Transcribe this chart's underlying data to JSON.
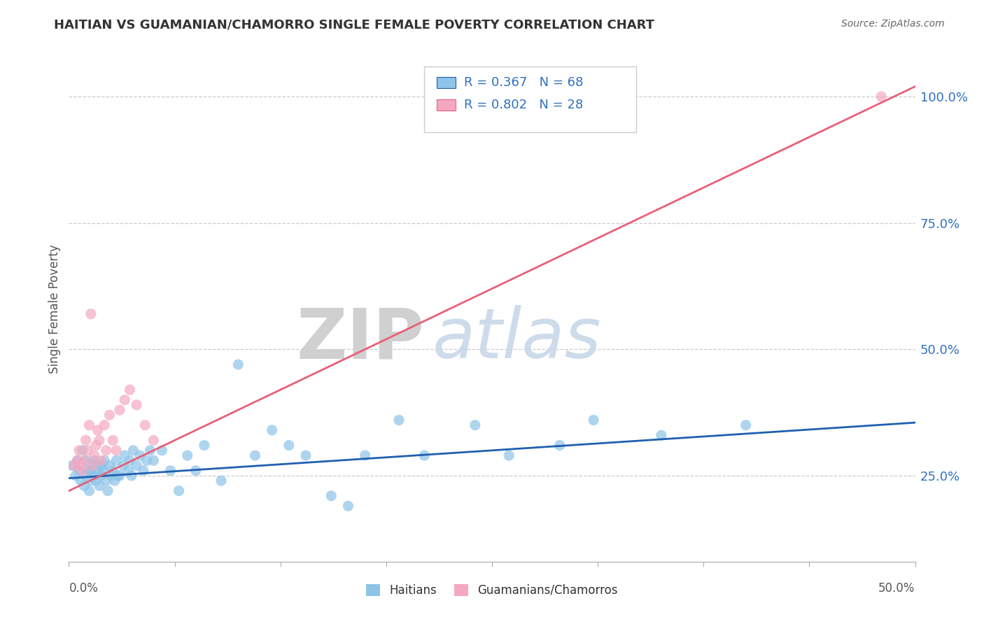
{
  "title": "HAITIAN VS GUAMANIAN/CHAMORRO SINGLE FEMALE POVERTY CORRELATION CHART",
  "source": "Source: ZipAtlas.com",
  "ylabel": "Single Female Poverty",
  "xlim": [
    0.0,
    0.5
  ],
  "ylim": [
    0.08,
    1.08
  ],
  "ytick_labels": [
    "25.0%",
    "50.0%",
    "75.0%",
    "100.0%"
  ],
  "ytick_values": [
    0.25,
    0.5,
    0.75,
    1.0
  ],
  "xtick_labels": [
    "0.0%",
    "50.0%"
  ],
  "xtick_values": [
    0.0,
    0.5
  ],
  "legend_r1": "R = 0.367",
  "legend_n1": "N = 68",
  "legend_r2": "R = 0.802",
  "legend_n2": "N = 28",
  "legend_label1": "Haitians",
  "legend_label2": "Guamanians/Chamorros",
  "color_blue": "#8ec4e8",
  "color_pink": "#f4a8c0",
  "color_blue_line": "#2060b0",
  "color_pink_line": "#e8607a",
  "color_text_blue": "#3070c0",
  "watermark_zip": "ZIP",
  "watermark_atlas": "atlas",
  "blue_scatter_x": [
    0.002,
    0.004,
    0.005,
    0.006,
    0.007,
    0.008,
    0.009,
    0.01,
    0.01,
    0.011,
    0.012,
    0.013,
    0.013,
    0.014,
    0.015,
    0.015,
    0.016,
    0.017,
    0.018,
    0.018,
    0.019,
    0.02,
    0.02,
    0.021,
    0.022,
    0.023,
    0.024,
    0.025,
    0.026,
    0.027,
    0.028,
    0.029,
    0.03,
    0.032,
    0.033,
    0.035,
    0.036,
    0.037,
    0.038,
    0.04,
    0.042,
    0.044,
    0.046,
    0.048,
    0.05,
    0.055,
    0.06,
    0.065,
    0.07,
    0.075,
    0.08,
    0.09,
    0.1,
    0.11,
    0.12,
    0.13,
    0.14,
    0.155,
    0.165,
    0.175,
    0.195,
    0.21,
    0.24,
    0.26,
    0.29,
    0.31,
    0.35,
    0.4
  ],
  "blue_scatter_y": [
    0.27,
    0.25,
    0.28,
    0.26,
    0.24,
    0.3,
    0.23,
    0.28,
    0.25,
    0.26,
    0.22,
    0.24,
    0.26,
    0.27,
    0.25,
    0.28,
    0.24,
    0.26,
    0.23,
    0.27,
    0.25,
    0.26,
    0.27,
    0.28,
    0.24,
    0.22,
    0.27,
    0.25,
    0.26,
    0.24,
    0.28,
    0.25,
    0.25,
    0.27,
    0.29,
    0.26,
    0.28,
    0.25,
    0.3,
    0.27,
    0.29,
    0.26,
    0.28,
    0.3,
    0.28,
    0.3,
    0.26,
    0.22,
    0.29,
    0.26,
    0.31,
    0.24,
    0.47,
    0.29,
    0.34,
    0.31,
    0.29,
    0.21,
    0.19,
    0.29,
    0.36,
    0.29,
    0.35,
    0.29,
    0.31,
    0.36,
    0.33,
    0.35
  ],
  "pink_scatter_x": [
    0.003,
    0.005,
    0.006,
    0.007,
    0.008,
    0.009,
    0.01,
    0.011,
    0.012,
    0.013,
    0.014,
    0.015,
    0.016,
    0.017,
    0.018,
    0.019,
    0.021,
    0.022,
    0.024,
    0.026,
    0.028,
    0.03,
    0.033,
    0.036,
    0.04,
    0.045,
    0.05,
    0.48
  ],
  "pink_scatter_y": [
    0.27,
    0.28,
    0.3,
    0.27,
    0.26,
    0.28,
    0.32,
    0.3,
    0.35,
    0.57,
    0.27,
    0.29,
    0.31,
    0.34,
    0.32,
    0.28,
    0.35,
    0.3,
    0.37,
    0.32,
    0.3,
    0.38,
    0.4,
    0.42,
    0.39,
    0.35,
    0.32,
    1.0
  ],
  "blue_line_x": [
    0.0,
    0.5
  ],
  "blue_line_y": [
    0.245,
    0.355
  ],
  "pink_line_x": [
    0.0,
    0.5
  ],
  "pink_line_y": [
    0.22,
    1.02
  ]
}
